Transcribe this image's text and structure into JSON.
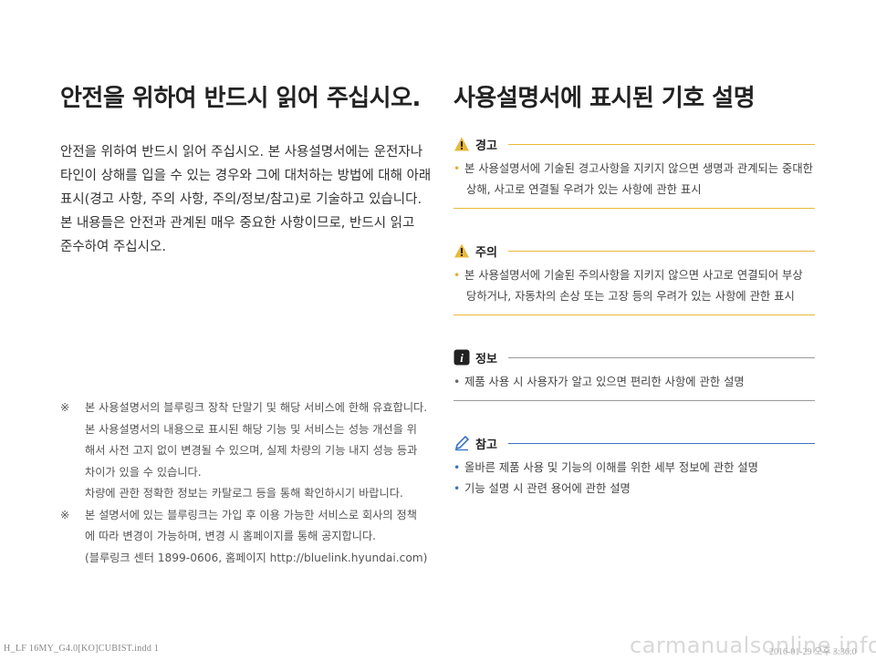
{
  "left": {
    "title": "안전을 위하여 반드시 읽어 주십시오.",
    "intro_lines": [
      "안전을 위하여 반드시 읽어 주십시오. 본 사용설명서에는 운전자나",
      "타인이 상해를 입을 수 있는 경우와 그에 대처하는 방법에 대해 아래",
      "표시(경고 사항, 주의 사항, 주의/정보/참고)로 기술하고 있습니다.",
      "본 내용들은 안전과 관계된 매우 중요한 사항이므로, 반드시 읽고",
      "준수하여 주십시오."
    ],
    "notes": {
      "mark": "※",
      "n1": [
        "본 사용설명서의 블루링크 장착 단말기 및 해당 서비스에 한해 유효합니다.",
        "본 사용설명서의 내용으로 표시된 해당 기능 및 서비스는 성능 개선을 위",
        "해서 사전 고지 없이 변경될 수 있으며, 실제 차량의 기능 내지 성능 등과",
        "차이가 있을 수 있습니다.",
        "차량에 관한 정확한 정보는 카탈로그 등을 통해 확인하시기 바랍니다."
      ],
      "n2": [
        "본 설명서에 있는 블루링크는 가입 후 이용 가능한 서비스로 회사의 정책",
        "에 따라 변경이 가능하며, 변경 시 홈페이지를 통해 공지합니다.",
        "(블루링크 센터 1899-0606, 홈페이지 http://bluelink.hyundai.com)"
      ]
    }
  },
  "right": {
    "title": "사용설명서에 표시된 기호 설명",
    "bullet": "•",
    "sections": {
      "warning": {
        "label": "경고",
        "line1": "본 사용설명서에 기술된 경고사항을 지키지 않으면 생명과 관계되는 중대한",
        "line2": "상해, 사고로 연결될 우려가 있는 사항에 관한 표시"
      },
      "caution": {
        "label": "주의",
        "line1": "본 사용설명서에 기술된 주의사항을 지키지 않으면 사고로 연결되어 부상",
        "line2": "당하거나, 자동차의 손상 또는 고장 등의 우려가 있는 사항에 관한 표시"
      },
      "info": {
        "label": "정보",
        "line1": "제품 사용 시 사용자가 알고 있으면 편리한 사항에 관한 설명"
      },
      "note": {
        "label": "참고",
        "line1": "올바른 제품 사용 및 기능의 이해를 위한 세부 정보에 관한 설명",
        "line2": "기능 설명 시 관련 용어에 관한 설명"
      }
    }
  },
  "colors": {
    "warning": "#e8b83a",
    "caution": "#e8b83a",
    "info": "#9a9a9a",
    "note": "#3a73c0",
    "bullet_warning": "#e8a93a",
    "bullet_note": "#3a73c0"
  },
  "icons": {
    "warning": "warning-triangle-icon",
    "caution": "caution-triangle-icon",
    "info": "info-icon",
    "note": "pencil-icon"
  },
  "footer": {
    "file": "H_LF 16MY_G4.0[KO]CUBIST.indd   1",
    "datetime": "2016-01-29   오후 3:36:0",
    "watermark": "carmanualsonline.info"
  }
}
